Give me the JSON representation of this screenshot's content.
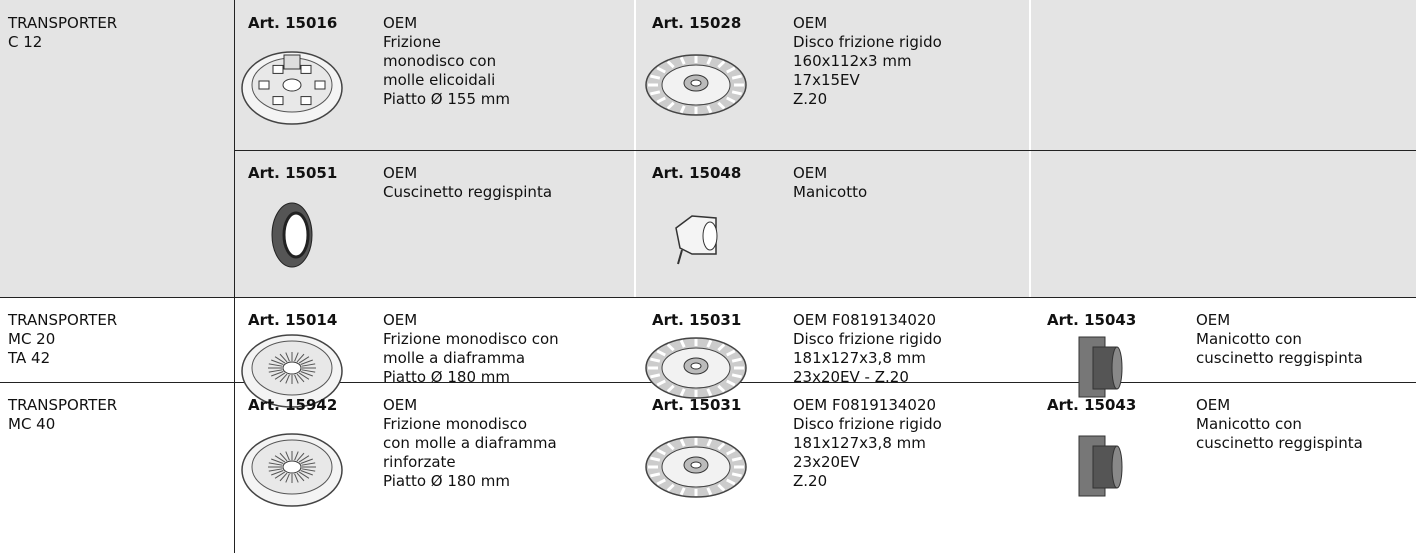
{
  "rows": [
    {
      "model": [
        "TRANSPORTER",
        "C 12"
      ],
      "subrows": [
        {
          "items": [
            {
              "art": "Art. 15016",
              "desc": [
                "OEM",
                "Frizione",
                "monodisco con",
                "molle elicoidali",
                "Piatto Ø 155 mm"
              ]
            },
            {
              "art": "Art. 15028",
              "desc": [
                "OEM",
                "Disco frizione rigido",
                "160x112x3 mm",
                "17x15EV",
                "Z.20"
              ]
            }
          ]
        },
        {
          "items": [
            {
              "art": "Art. 15051",
              "desc": [
                "OEM",
                "Cuscinetto reggispinta"
              ]
            },
            {
              "art": "Art. 15048",
              "desc": [
                "OEM",
                "Manicotto"
              ]
            }
          ]
        }
      ]
    },
    {
      "model": [
        "TRANSPORTER",
        "MC 20",
        "TA 42"
      ],
      "subrows": [
        {
          "items": [
            {
              "art": "Art. 15014",
              "desc": [
                "OEM",
                "Frizione monodisco con",
                "molle a diaframma",
                "Piatto Ø 180 mm"
              ]
            },
            {
              "art": "Art. 15031",
              "desc": [
                "OEM F0819134020",
                "Disco frizione rigido",
                "181x127x3,8 mm",
                "23x20EV - Z.20"
              ]
            },
            {
              "art": "Art. 15043",
              "desc": [
                "OEM",
                "Manicotto con",
                "cuscinetto reggispinta"
              ]
            }
          ]
        }
      ]
    },
    {
      "model": [
        "TRANSPORTER",
        "MC 40"
      ],
      "subrows": [
        {
          "items": [
            {
              "art": "Art. 15942",
              "desc": [
                "OEM",
                "Frizione monodisco",
                "con molle a diaframma",
                "rinforzate",
                "Piatto Ø 180 mm"
              ]
            },
            {
              "art": "Art. 15031",
              "desc": [
                "OEM F0819134020",
                "Disco frizione rigido",
                "181x127x3,8 mm",
                "23x20EV",
                "Z.20"
              ]
            },
            {
              "art": "Art. 15043",
              "desc": [
                "OEM",
                "Manicotto con",
                "cuscinetto reggispinta"
              ]
            }
          ]
        }
      ]
    }
  ]
}
